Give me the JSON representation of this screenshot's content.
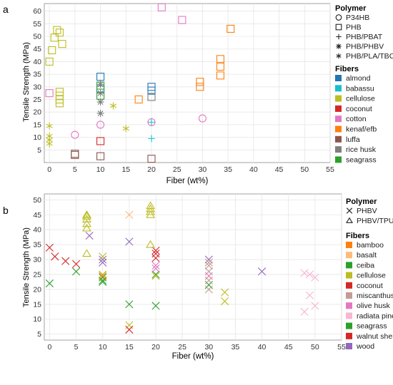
{
  "panels": [
    {
      "id": "a",
      "chart_data": {
        "type": "scatter",
        "panel_label": "a",
        "title": "",
        "xlabel": "Fiber (wt%)",
        "ylabel": "Tensile Strength (MPa)",
        "xlim": [
          -1,
          55
        ],
        "ylim": [
          0,
          63
        ],
        "xticks": [
          0,
          5,
          10,
          15,
          20,
          25,
          30,
          35,
          40,
          45,
          50,
          55
        ],
        "yticks": [
          5,
          10,
          15,
          20,
          25,
          30,
          35,
          40,
          45,
          50,
          55,
          60
        ],
        "grid": true,
        "legend_position": "right",
        "shape_legend_title": "Polymer",
        "shape_legend": [
          {
            "name": "P34HB",
            "shape": "circle"
          },
          {
            "name": "PHB",
            "shape": "square"
          },
          {
            "name": "PHB/PBAT",
            "shape": "plus"
          },
          {
            "name": "PHB/PHBV",
            "shape": "asterisk"
          },
          {
            "name": "PHB/PLA/TBC",
            "shape": "star"
          }
        ],
        "color_legend_title": "Fibers",
        "color_legend": [
          {
            "name": "almond",
            "color": "#1f77b4"
          },
          {
            "name": "babassu",
            "color": "#17becf"
          },
          {
            "name": "cellulose",
            "color": "#bcbd22"
          },
          {
            "name": "coconut",
            "color": "#d62728"
          },
          {
            "name": "cotton",
            "color": "#e377c2"
          },
          {
            "name": "kenaf/efb",
            "color": "#ff7f0e"
          },
          {
            "name": "luffa",
            "color": "#8c564b"
          },
          {
            "name": "rice husk",
            "color": "#7f7f7f"
          },
          {
            "name": "seagrass",
            "color": "#2ca02c"
          }
        ],
        "points": [
          {
            "x": 0,
            "y": 40,
            "shape": "square",
            "fiber": "cellulose"
          },
          {
            "x": 0.5,
            "y": 44.5,
            "shape": "square",
            "fiber": "cellulose"
          },
          {
            "x": 1,
            "y": 49.5,
            "shape": "square",
            "fiber": "cellulose"
          },
          {
            "x": 1.5,
            "y": 52.5,
            "shape": "square",
            "fiber": "cellulose"
          },
          {
            "x": 2,
            "y": 51.5,
            "shape": "square",
            "fiber": "cellulose"
          },
          {
            "x": 2.5,
            "y": 47,
            "shape": "square",
            "fiber": "cellulose"
          },
          {
            "x": 2,
            "y": 28,
            "shape": "square",
            "fiber": "cellulose"
          },
          {
            "x": 2,
            "y": 26.5,
            "shape": "square",
            "fiber": "cellulose"
          },
          {
            "x": 2,
            "y": 25,
            "shape": "square",
            "fiber": "cellulose"
          },
          {
            "x": 2,
            "y": 23.5,
            "shape": "square",
            "fiber": "cellulose"
          },
          {
            "x": 0,
            "y": 27.5,
            "shape": "square",
            "fiber": "cotton"
          },
          {
            "x": 22,
            "y": 61.5,
            "shape": "square",
            "fiber": "cotton"
          },
          {
            "x": 26,
            "y": 56.5,
            "shape": "square",
            "fiber": "cotton"
          },
          {
            "x": 0,
            "y": 14.5,
            "shape": "star",
            "fiber": "cellulose"
          },
          {
            "x": 0,
            "y": 10.5,
            "shape": "star",
            "fiber": "cellulose"
          },
          {
            "x": 0,
            "y": 9,
            "shape": "star",
            "fiber": "cellulose"
          },
          {
            "x": 0,
            "y": 7.5,
            "shape": "star",
            "fiber": "cellulose"
          },
          {
            "x": 12.5,
            "y": 22.5,
            "shape": "star",
            "fiber": "cellulose"
          },
          {
            "x": 15,
            "y": 13.5,
            "shape": "star",
            "fiber": "cellulose"
          },
          {
            "x": 5,
            "y": 11,
            "shape": "circle",
            "fiber": "cotton"
          },
          {
            "x": 10,
            "y": 15,
            "shape": "circle",
            "fiber": "cotton"
          },
          {
            "x": 20,
            "y": 16,
            "shape": "circle",
            "fiber": "cotton"
          },
          {
            "x": 30,
            "y": 17.5,
            "shape": "circle",
            "fiber": "cotton"
          },
          {
            "x": 5,
            "y": 3,
            "shape": "square",
            "fiber": "luffa"
          },
          {
            "x": 5,
            "y": 3.5,
            "shape": "square",
            "fiber": "luffa"
          },
          {
            "x": 10,
            "y": 2.5,
            "shape": "square",
            "fiber": "luffa"
          },
          {
            "x": 20,
            "y": 1.5,
            "shape": "square",
            "fiber": "luffa"
          },
          {
            "x": 10,
            "y": 8.5,
            "shape": "square",
            "fiber": "coconut"
          },
          {
            "x": 10,
            "y": 34,
            "shape": "square",
            "fiber": "almond"
          },
          {
            "x": 10,
            "y": 29,
            "shape": "square",
            "fiber": "almond"
          },
          {
            "x": 20,
            "y": 30,
            "shape": "square",
            "fiber": "almond"
          },
          {
            "x": 20,
            "y": 28.5,
            "shape": "square",
            "fiber": "almond"
          },
          {
            "x": 10,
            "y": 30.5,
            "shape": "square",
            "fiber": "seagrass"
          },
          {
            "x": 10,
            "y": 26.5,
            "shape": "square",
            "fiber": "seagrass"
          },
          {
            "x": 10,
            "y": 31,
            "shape": "asterisk",
            "fiber": "rice husk"
          },
          {
            "x": 10,
            "y": 27.5,
            "shape": "asterisk",
            "fiber": "rice husk"
          },
          {
            "x": 10,
            "y": 24,
            "shape": "asterisk",
            "fiber": "rice husk"
          },
          {
            "x": 10,
            "y": 19.5,
            "shape": "asterisk",
            "fiber": "rice husk"
          },
          {
            "x": 20,
            "y": 26,
            "shape": "square",
            "fiber": "rice husk"
          },
          {
            "x": 17.5,
            "y": 25,
            "shape": "square",
            "fiber": "kenaf/efb"
          },
          {
            "x": 29.5,
            "y": 32,
            "shape": "square",
            "fiber": "kenaf/efb"
          },
          {
            "x": 29.5,
            "y": 30,
            "shape": "square",
            "fiber": "kenaf/efb"
          },
          {
            "x": 33.5,
            "y": 41,
            "shape": "square",
            "fiber": "kenaf/efb"
          },
          {
            "x": 33.5,
            "y": 38,
            "shape": "square",
            "fiber": "kenaf/efb"
          },
          {
            "x": 33.5,
            "y": 34.5,
            "shape": "square",
            "fiber": "kenaf/efb"
          },
          {
            "x": 35.5,
            "y": 53,
            "shape": "square",
            "fiber": "kenaf/efb"
          },
          {
            "x": 20,
            "y": 16,
            "shape": "plus",
            "fiber": "babassu"
          },
          {
            "x": 20,
            "y": 9.5,
            "shape": "plus",
            "fiber": "babassu"
          }
        ]
      }
    },
    {
      "id": "b",
      "chart_data": {
        "type": "scatter",
        "panel_label": "b",
        "title": "",
        "xlabel": "Fiber (wt%)",
        "ylabel": "Tensile Strength (MPa)",
        "xlim": [
          -1,
          55
        ],
        "ylim": [
          3,
          52
        ],
        "xticks": [
          0,
          5,
          10,
          15,
          20,
          25,
          30,
          35,
          40,
          45,
          50,
          55
        ],
        "yticks": [
          5,
          10,
          15,
          20,
          25,
          30,
          35,
          40,
          45,
          50
        ],
        "grid": true,
        "legend_position": "right",
        "shape_legend_title": "Polymer",
        "shape_legend": [
          {
            "name": "PHBV",
            "shape": "cross"
          },
          {
            "name": "PHBV/TPU",
            "shape": "triangle"
          }
        ],
        "color_legend_title": "Fibers",
        "color_legend": [
          {
            "name": "bamboo",
            "color": "#ff7f0e"
          },
          {
            "name": "basalt",
            "color": "#ffbb78"
          },
          {
            "name": "ceiba",
            "color": "#2ca02c"
          },
          {
            "name": "cellulose",
            "color": "#bcbd22"
          },
          {
            "name": "coconut",
            "color": "#d62728"
          },
          {
            "name": "miscanthus",
            "color": "#c49c94"
          },
          {
            "name": "olive husk",
            "color": "#e377c2"
          },
          {
            "name": "radiata pine",
            "color": "#f7b6d2"
          },
          {
            "name": "seagrass",
            "color": "#2ca02c"
          },
          {
            "name": "walnut shell",
            "color": "#d62728"
          },
          {
            "name": "wood",
            "color": "#9467bd"
          }
        ],
        "points": [
          {
            "x": 0,
            "y": 34,
            "shape": "cross",
            "fiber": "walnut shell"
          },
          {
            "x": 1,
            "y": 31,
            "shape": "cross",
            "fiber": "walnut shell"
          },
          {
            "x": 3,
            "y": 29.5,
            "shape": "cross",
            "fiber": "walnut shell"
          },
          {
            "x": 5,
            "y": 28.5,
            "shape": "cross",
            "fiber": "walnut shell"
          },
          {
            "x": 0,
            "y": 22,
            "shape": "cross",
            "fiber": "ceiba"
          },
          {
            "x": 5,
            "y": 26,
            "shape": "cross",
            "fiber": "ceiba"
          },
          {
            "x": 10,
            "y": 24,
            "shape": "cross",
            "fiber": "seagrass"
          },
          {
            "x": 10,
            "y": 23,
            "shape": "cross",
            "fiber": "seagrass"
          },
          {
            "x": 10,
            "y": 22.5,
            "shape": "cross",
            "fiber": "seagrass"
          },
          {
            "x": 15,
            "y": 15,
            "shape": "cross",
            "fiber": "seagrass"
          },
          {
            "x": 20,
            "y": 14.5,
            "shape": "cross",
            "fiber": "seagrass"
          },
          {
            "x": 20,
            "y": 25,
            "shape": "cross",
            "fiber": "seagrass"
          },
          {
            "x": 30,
            "y": 21.5,
            "shape": "cross",
            "fiber": "seagrass"
          },
          {
            "x": 10,
            "y": 31,
            "shape": "cross",
            "fiber": "cellulose"
          },
          {
            "x": 10,
            "y": 25,
            "shape": "cross",
            "fiber": "cellulose"
          },
          {
            "x": 15,
            "y": 8,
            "shape": "cross",
            "fiber": "cellulose"
          },
          {
            "x": 20,
            "y": 24.5,
            "shape": "cross",
            "fiber": "cellulose"
          },
          {
            "x": 33,
            "y": 19,
            "shape": "cross",
            "fiber": "cellulose"
          },
          {
            "x": 33,
            "y": 16,
            "shape": "cross",
            "fiber": "cellulose"
          },
          {
            "x": 10,
            "y": 24.5,
            "shape": "cross",
            "fiber": "bamboo"
          },
          {
            "x": 15,
            "y": 6.5,
            "shape": "cross",
            "fiber": "coconut"
          },
          {
            "x": 20,
            "y": 33,
            "shape": "cross",
            "fiber": "coconut"
          },
          {
            "x": 20,
            "y": 32,
            "shape": "cross",
            "fiber": "coconut"
          },
          {
            "x": 20,
            "y": 30.5,
            "shape": "cross",
            "fiber": "coconut"
          },
          {
            "x": 15,
            "y": 45,
            "shape": "cross",
            "fiber": "basalt"
          },
          {
            "x": 7.5,
            "y": 38,
            "shape": "cross",
            "fiber": "wood"
          },
          {
            "x": 10,
            "y": 30,
            "shape": "cross",
            "fiber": "wood"
          },
          {
            "x": 10,
            "y": 29,
            "shape": "cross",
            "fiber": "wood"
          },
          {
            "x": 15,
            "y": 36,
            "shape": "cross",
            "fiber": "wood"
          },
          {
            "x": 30,
            "y": 30,
            "shape": "cross",
            "fiber": "wood"
          },
          {
            "x": 40,
            "y": 26,
            "shape": "cross",
            "fiber": "wood"
          },
          {
            "x": 20,
            "y": 28,
            "shape": "cross",
            "fiber": "olive husk"
          },
          {
            "x": 20,
            "y": 27,
            "shape": "cross",
            "fiber": "olive husk"
          },
          {
            "x": 30,
            "y": 24.5,
            "shape": "cross",
            "fiber": "olive husk"
          },
          {
            "x": 30,
            "y": 29,
            "shape": "cross",
            "fiber": "miscanthus"
          },
          {
            "x": 30,
            "y": 28,
            "shape": "cross",
            "fiber": "miscanthus"
          },
          {
            "x": 30,
            "y": 26,
            "shape": "cross",
            "fiber": "miscanthus"
          },
          {
            "x": 30,
            "y": 23,
            "shape": "cross",
            "fiber": "miscanthus"
          },
          {
            "x": 30,
            "y": 20,
            "shape": "cross",
            "fiber": "miscanthus"
          },
          {
            "x": 48,
            "y": 25.5,
            "shape": "cross",
            "fiber": "radiata pine"
          },
          {
            "x": 49,
            "y": 25,
            "shape": "cross",
            "fiber": "radiata pine"
          },
          {
            "x": 50,
            "y": 24,
            "shape": "cross",
            "fiber": "radiata pine"
          },
          {
            "x": 49,
            "y": 18,
            "shape": "cross",
            "fiber": "radiata pine"
          },
          {
            "x": 50,
            "y": 14.5,
            "shape": "cross",
            "fiber": "radiata pine"
          },
          {
            "x": 48,
            "y": 12.5,
            "shape": "cross",
            "fiber": "radiata pine"
          },
          {
            "x": 7,
            "y": 45,
            "shape": "triangle",
            "fiber": "cellulose"
          },
          {
            "x": 7,
            "y": 44.5,
            "shape": "triangle",
            "fiber": "cellulose"
          },
          {
            "x": 7,
            "y": 43.5,
            "shape": "triangle",
            "fiber": "cellulose"
          },
          {
            "x": 7,
            "y": 42,
            "shape": "triangle",
            "fiber": "cellulose"
          },
          {
            "x": 7,
            "y": 40.5,
            "shape": "triangle",
            "fiber": "cellulose"
          },
          {
            "x": 7,
            "y": 32,
            "shape": "triangle",
            "fiber": "cellulose"
          },
          {
            "x": 19,
            "y": 48,
            "shape": "triangle",
            "fiber": "cellulose"
          },
          {
            "x": 19,
            "y": 47,
            "shape": "triangle",
            "fiber": "cellulose"
          },
          {
            "x": 19,
            "y": 46,
            "shape": "triangle",
            "fiber": "cellulose"
          },
          {
            "x": 19,
            "y": 45,
            "shape": "triangle",
            "fiber": "cellulose"
          },
          {
            "x": 19,
            "y": 35,
            "shape": "triangle",
            "fiber": "cellulose"
          }
        ]
      }
    }
  ]
}
